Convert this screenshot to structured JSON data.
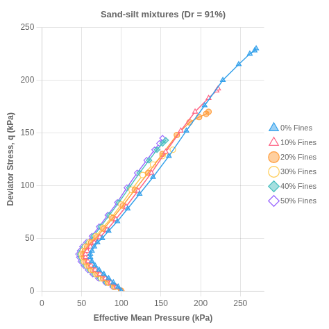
{
  "chart_data": {
    "type": "line",
    "title": "Sand-silt mixtures (Dr = 91%)",
    "xlabel": "Effective Mean Pressure (kPa)",
    "ylabel": "Deviator Stress, q (kPa)",
    "xlim": [
      0,
      280
    ],
    "ylim": [
      0,
      250
    ],
    "xticks": [
      0,
      50,
      100,
      150,
      200,
      250
    ],
    "yticks": [
      0,
      50,
      100,
      150,
      200,
      250
    ],
    "grid": true,
    "legend": "right",
    "series": [
      {
        "name": "0% Fines",
        "marker": "triangle",
        "x": [
          100,
          96,
          90,
          84,
          78,
          72,
          67,
          63,
          61,
          61,
          63,
          66,
          70,
          76,
          84,
          95,
          108,
          123,
          140,
          160,
          182,
          205,
          228,
          248,
          262,
          268,
          270
        ],
        "values": [
          0,
          4,
          8,
          12,
          16,
          20,
          24,
          28,
          32,
          35,
          38,
          42,
          46,
          50,
          57,
          66,
          78,
          92,
          108,
          128,
          152,
          176,
          200,
          215,
          225,
          228,
          230
        ]
      },
      {
        "name": "10% Fines",
        "marker": "triangle-open",
        "x": [
          100,
          94,
          87,
          80,
          73,
          67,
          62,
          58,
          55,
          55,
          57,
          61,
          66,
          73,
          82,
          93,
          106,
          121,
          138,
          156,
          175,
          193,
          210,
          220,
          222
        ],
        "values": [
          0,
          4,
          8,
          12,
          16,
          20,
          24,
          28,
          32,
          35,
          38,
          42,
          46,
          51,
          58,
          68,
          80,
          95,
          112,
          132,
          152,
          170,
          183,
          190,
          192
        ]
      },
      {
        "name": "20% Fines",
        "marker": "circle",
        "x": [
          100,
          92,
          84,
          77,
          70,
          64,
          59,
          55,
          53,
          52,
          54,
          57,
          62,
          69,
          78,
          89,
          102,
          117,
          134,
          152,
          170,
          186,
          198,
          207,
          210
        ],
        "values": [
          0,
          4,
          8,
          12,
          16,
          20,
          24,
          28,
          32,
          35,
          38,
          42,
          46,
          51,
          59,
          69,
          81,
          96,
          112,
          130,
          148,
          160,
          165,
          168,
          170
        ]
      },
      {
        "name": "30% Fines",
        "marker": "circle-open",
        "x": [
          100,
          91,
          83,
          75,
          68,
          62,
          57,
          53,
          51,
          50,
          52,
          55,
          60,
          68,
          77,
          88,
          100,
          113,
          127,
          140,
          152,
          160,
          165
        ],
        "values": [
          0,
          4,
          8,
          12,
          16,
          20,
          24,
          28,
          32,
          35,
          38,
          42,
          46,
          52,
          60,
          70,
          82,
          96,
          110,
          120,
          128,
          132,
          134
        ]
      },
      {
        "name": "40% Fines",
        "marker": "diamond",
        "x": [
          100,
          90,
          81,
          73,
          66,
          60,
          55,
          51,
          49,
          48,
          50,
          53,
          58,
          65,
          74,
          85,
          97,
          110,
          123,
          135,
          145,
          152,
          156
        ],
        "values": [
          0,
          4,
          8,
          12,
          16,
          20,
          24,
          28,
          32,
          35,
          38,
          42,
          46,
          52,
          61,
          72,
          84,
          98,
          112,
          124,
          134,
          140,
          143
        ]
      },
      {
        "name": "50% Fines",
        "marker": "diamond-open",
        "x": [
          100,
          89,
          80,
          71,
          64,
          58,
          53,
          49,
          47,
          46,
          48,
          51,
          56,
          63,
          72,
          83,
          95,
          107,
          120,
          132,
          142,
          148,
          152
        ],
        "values": [
          0,
          4,
          8,
          12,
          16,
          20,
          24,
          28,
          32,
          35,
          38,
          42,
          46,
          52,
          61,
          72,
          84,
          98,
          112,
          124,
          134,
          140,
          145
        ]
      }
    ]
  }
}
